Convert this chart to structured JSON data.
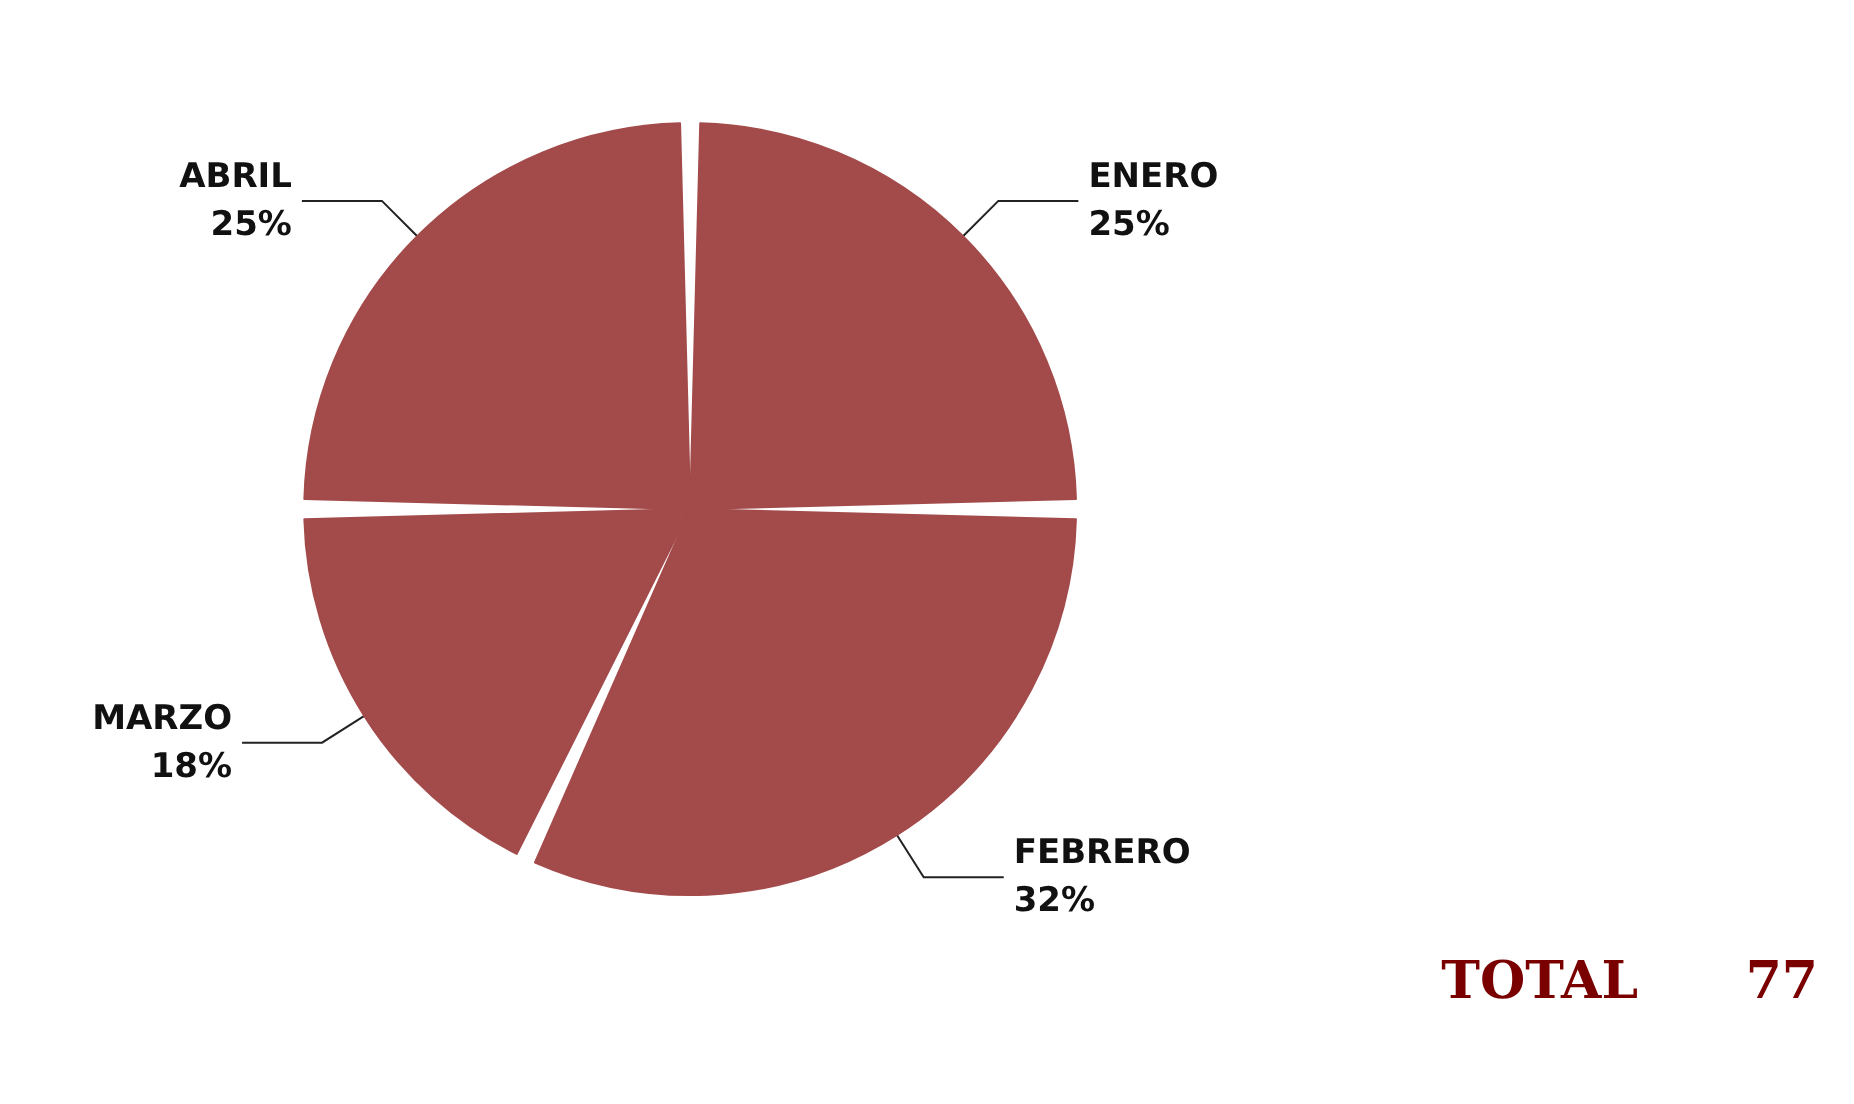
{
  "chart_data": {
    "type": "pie",
    "categories": [
      "ENERO",
      "FEBRERO",
      "MARZO",
      "ABRIL"
    ],
    "values": [
      25,
      32,
      18,
      25
    ],
    "value_labels": [
      "25%",
      "32%",
      "18%",
      "25%"
    ],
    "colors": [
      "#a34a4a",
      "#a34a4a",
      "#a34a4a",
      "#a34a4a"
    ],
    "annotations": [
      "TOTAL",
      "77"
    ],
    "legend": false
  }
}
